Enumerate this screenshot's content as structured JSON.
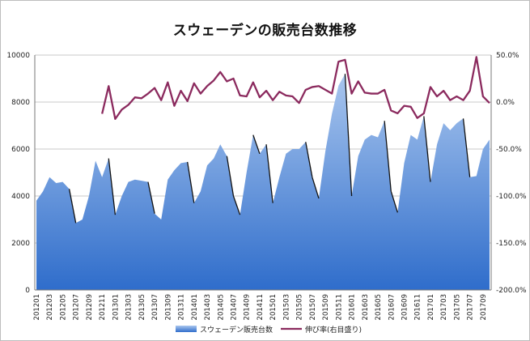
{
  "chart_data": {
    "type": "area",
    "title": "スウェーデンの販売台数推移",
    "x": [
      "201201",
      "201202",
      "201203",
      "201204",
      "201205",
      "201206",
      "201207",
      "201208",
      "201209",
      "201210",
      "201211",
      "201212",
      "201301",
      "201302",
      "201303",
      "201304",
      "201305",
      "201306",
      "201307",
      "201308",
      "201309",
      "201310",
      "201311",
      "201312",
      "201401",
      "201402",
      "201403",
      "201404",
      "201405",
      "201406",
      "201407",
      "201408",
      "201409",
      "201410",
      "201411",
      "201412",
      "201501",
      "201502",
      "201503",
      "201504",
      "201505",
      "201506",
      "201507",
      "201508",
      "201509",
      "201510",
      "201511",
      "201512",
      "201601",
      "201602",
      "201603",
      "201604",
      "201605",
      "201606",
      "201607",
      "201608",
      "201609",
      "201610",
      "201611",
      "201612",
      "201701",
      "201702",
      "201703",
      "201704",
      "201705",
      "201706",
      "201707",
      "201708",
      "201709",
      "201710"
    ],
    "x_tick_labels": [
      "201201",
      "201203",
      "201205",
      "201207",
      "201209",
      "201211",
      "201301",
      "201303",
      "201305",
      "201307",
      "201309",
      "201311",
      "201401",
      "201403",
      "201405",
      "201407",
      "201409",
      "201411",
      "201501",
      "201503",
      "201505",
      "201507",
      "201509",
      "201511",
      "201601",
      "201603",
      "201605",
      "201607",
      "201609",
      "201611",
      "201701",
      "201703",
      "201705",
      "201707",
      "201709"
    ],
    "series": [
      {
        "name": "スウェーデン販売台数",
        "type": "area",
        "axis": "left",
        "color": "#5b8fd9",
        "values": [
          3800,
          4200,
          4800,
          4550,
          4600,
          4300,
          2850,
          3000,
          4000,
          5500,
          4800,
          5600,
          3200,
          4000,
          4600,
          4700,
          4650,
          4600,
          3250,
          3000,
          4700,
          5100,
          5400,
          5450,
          3700,
          4200,
          5300,
          5600,
          6200,
          5700,
          4000,
          3200,
          5000,
          6600,
          5800,
          6200,
          3700,
          4800,
          5800,
          6000,
          6000,
          6300,
          4800,
          3900,
          5900,
          7500,
          8700,
          9200,
          4000,
          5700,
          6400,
          6600,
          6500,
          7200,
          4200,
          3300,
          5400,
          6600,
          6400,
          7400,
          4600,
          6200,
          7100,
          6800,
          7100,
          7300,
          4800,
          4850,
          6000,
          6400
        ]
      },
      {
        "name": "伸び率(右目盛り)",
        "type": "line",
        "axis": "right",
        "color": "#8b2a5e",
        "values": [
          null,
          null,
          null,
          null,
          null,
          null,
          null,
          null,
          null,
          null,
          -12.5,
          17,
          -18,
          -8,
          -3,
          5,
          4,
          9,
          15,
          2,
          21,
          -4,
          12,
          1,
          20,
          9,
          17,
          23,
          32,
          22,
          25,
          7,
          6,
          21,
          5,
          12,
          2,
          11,
          7,
          6,
          -1,
          13,
          16,
          17,
          13,
          9,
          43,
          45,
          9,
          22,
          10,
          9,
          9,
          13,
          -9,
          -12,
          -4,
          -5,
          -17,
          -12,
          16,
          6,
          12,
          2,
          6,
          2,
          12,
          48,
          6,
          -1
        ]
      }
    ],
    "yleft_ticks": [
      "0",
      "2000",
      "4000",
      "6000",
      "8000",
      "10000"
    ],
    "yleft_lim": [
      0,
      10000
    ],
    "yright_ticks": [
      "-200.0%",
      "-150.0%",
      "-100.0%",
      "-50.0%",
      "0.0%",
      "50.0%"
    ],
    "yright_lim": [
      -200,
      50
    ],
    "grid": true,
    "legend_position": "bottom"
  }
}
